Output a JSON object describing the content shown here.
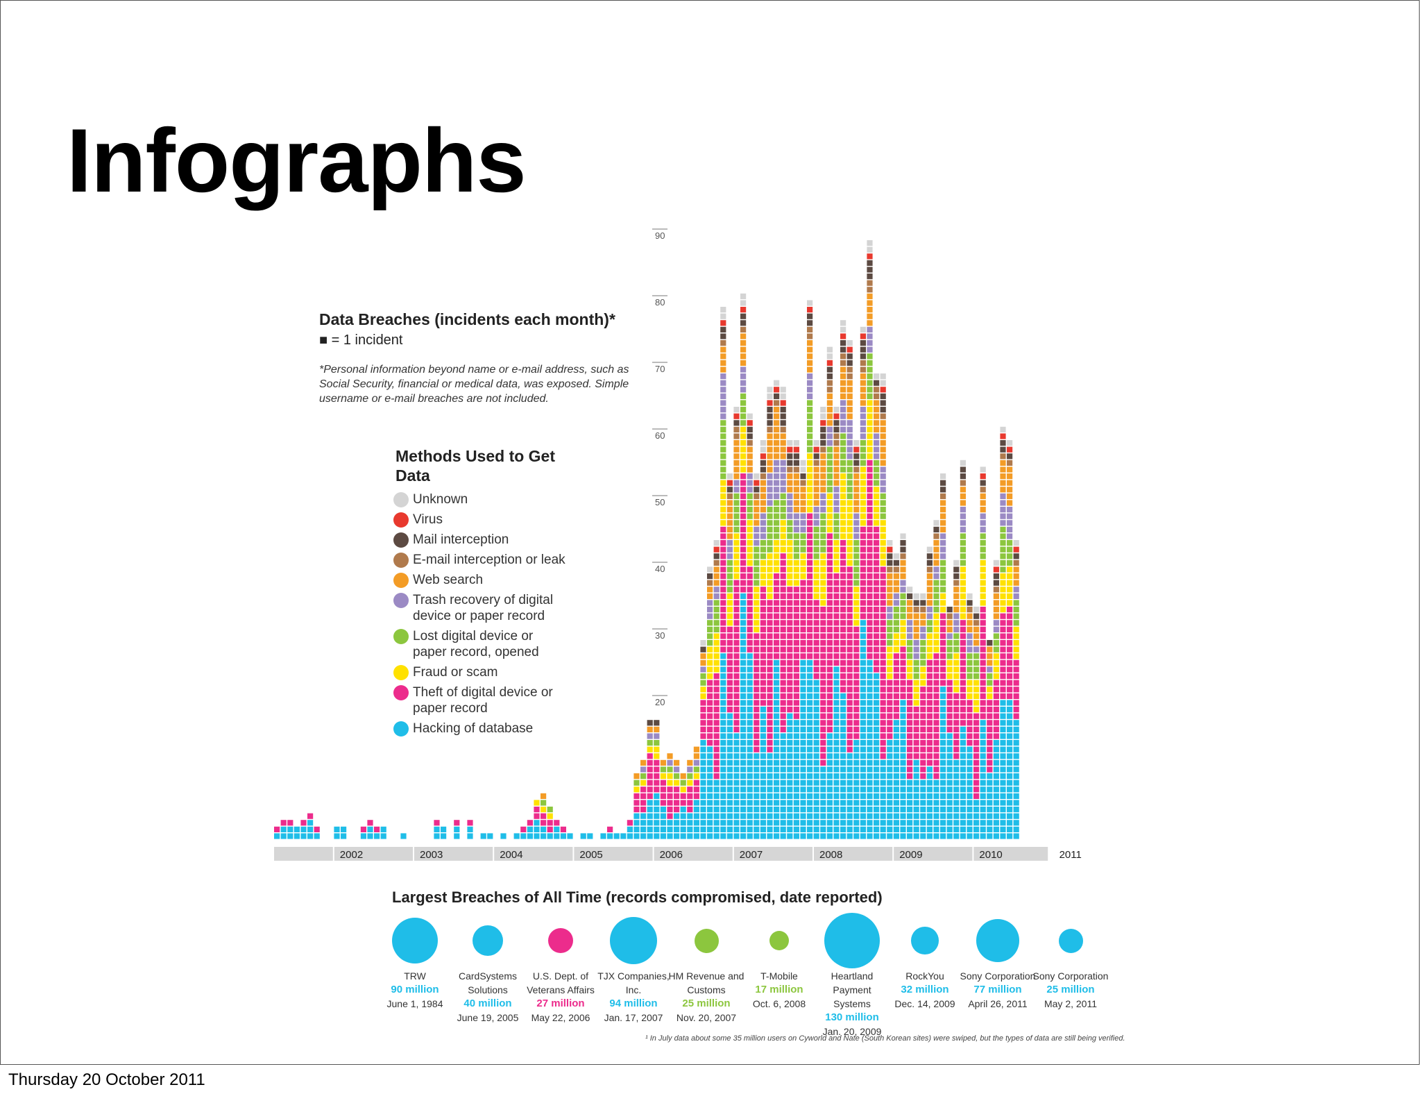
{
  "slide": {
    "title": "Infographs",
    "footer_date": "Thursday 20 October 2011"
  },
  "chart_data": {
    "type": "bar",
    "subtype": "stacked unit-square columns",
    "title": "Data Breaches (incidents each month)*",
    "unit_label": "■ = 1 incident",
    "footnote": "*Personal information beyond name or e-mail address, such as Social Security, financial or medical data, was exposed. Simple username or e-mail breaches are not included.",
    "legend_title": "Methods Used to Get Data",
    "legend_placement": "left",
    "ylim": [
      0,
      90
    ],
    "yticks": [
      "20",
      "30",
      "40",
      "50",
      "60",
      "70",
      "80",
      "90"
    ],
    "year_labels": [
      "2002",
      "2003",
      "2004",
      "2005",
      "2006",
      "2007",
      "2008",
      "2009",
      "2010",
      "2011"
    ],
    "methods": [
      {
        "name": "Unknown",
        "color": "#d4d4d4"
      },
      {
        "name": "Virus",
        "color": "#e8392e"
      },
      {
        "name": "Mail interception",
        "color": "#5c4a42"
      },
      {
        "name": "E-mail interception or leak",
        "color": "#b07a4c"
      },
      {
        "name": "Web search",
        "color": "#f39c26"
      },
      {
        "name": "Trash recovery of digital device or paper record",
        "color": "#9b8ac4"
      },
      {
        "name": "Lost digital device or paper record, opened",
        "color": "#8cc63e"
      },
      {
        "name": "Fraud or scam",
        "color": "#ffe100"
      },
      {
        "name": "Theft of digital device or paper record",
        "color": "#ec2c8c"
      },
      {
        "name": "Hacking of database",
        "color": "#1fbde8"
      }
    ],
    "monthly_totals_approx": [
      2,
      3,
      3,
      2,
      3,
      4,
      2,
      0,
      0,
      2,
      2,
      0,
      0,
      2,
      3,
      2,
      2,
      0,
      0,
      1,
      0,
      0,
      0,
      0,
      3,
      2,
      0,
      3,
      0,
      3,
      0,
      1,
      1,
      0,
      1,
      0,
      1,
      2,
      3,
      6,
      7,
      5,
      3,
      2,
      1,
      0,
      1,
      1,
      0,
      1,
      2,
      1,
      1,
      3,
      10,
      12,
      18,
      18,
      12,
      13,
      12,
      10,
      12,
      14,
      30,
      41,
      45,
      80,
      55,
      65,
      82,
      64,
      55,
      60,
      68,
      69,
      68,
      60,
      60,
      57,
      81,
      60,
      65,
      74,
      65,
      78,
      75,
      60,
      77,
      90,
      70,
      70,
      45,
      43,
      46,
      38,
      37,
      37,
      44,
      48,
      55,
      35,
      42,
      57,
      37,
      35,
      56,
      30,
      42,
      62,
      60,
      45
    ],
    "largest_breaches_title": "Largest Breaches of All Time (records compromised, date reported)",
    "largest_breaches": [
      {
        "name": "TRW",
        "records": "90 million",
        "date": "June 1, 1984",
        "method": "Hacking of database",
        "millions": 90
      },
      {
        "name": "CardSystems Solutions",
        "records": "40 million",
        "date": "June 19, 2005",
        "method": "Hacking of database",
        "millions": 40
      },
      {
        "name": "U.S. Dept. of Veterans Affairs",
        "records": "27 million",
        "date": "May 22, 2006",
        "method": "Theft of digital device or paper record",
        "millions": 27
      },
      {
        "name": "TJX Companies, Inc.",
        "records": "94 million",
        "date": "Jan. 17, 2007",
        "method": "Hacking of database",
        "millions": 94
      },
      {
        "name": "HM Revenue and Customs",
        "records": "25 million",
        "date": "Nov. 20, 2007",
        "method": "Lost digital device or paper record, opened",
        "millions": 25
      },
      {
        "name": "T-Mobile",
        "records": "17 million",
        "date": "Oct. 6, 2008",
        "method": "Lost digital device or paper record, opened",
        "millions": 17
      },
      {
        "name": "Heartland Payment Systems",
        "records": "130 million",
        "date": "Jan. 20, 2009",
        "method": "Hacking of database",
        "millions": 130
      },
      {
        "name": "RockYou",
        "records": "32 million",
        "date": "Dec. 14, 2009",
        "method": "Hacking of database",
        "millions": 32
      },
      {
        "name": "Sony Corporation",
        "records": "77 million",
        "date": "April 26, 2011",
        "method": "Hacking of database",
        "millions": 77
      },
      {
        "name": "Sony Corporation",
        "records": "25 million",
        "date": "May 2, 2011",
        "method": "Hacking of database",
        "millions": 25
      }
    ],
    "breach_footnote": "¹ In July data about some 35 million users on Cyworld and Nate (South Korean sites) were swiped, but the types of data are still being verified."
  }
}
